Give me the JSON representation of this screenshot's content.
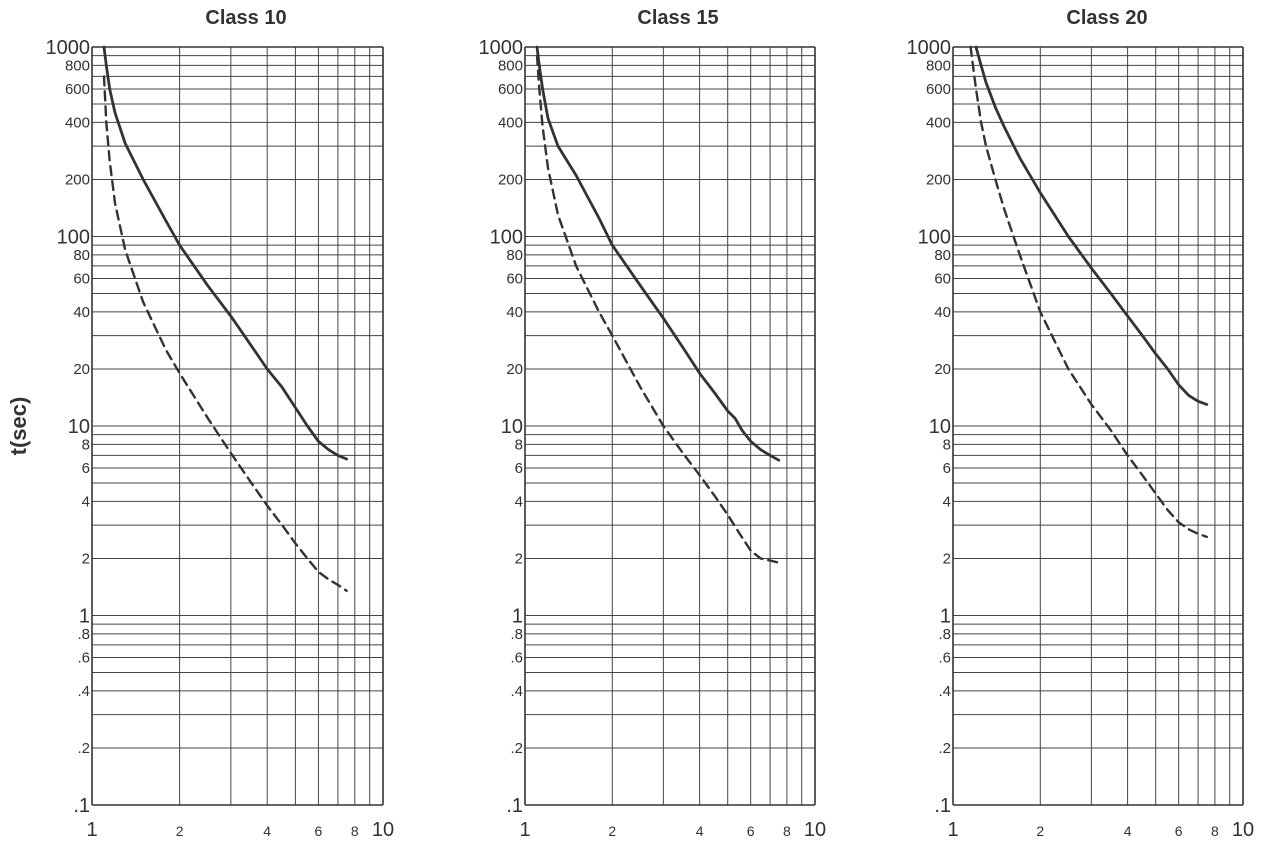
{
  "chart_data": [
    {
      "type": "line",
      "title": "Class 10",
      "ylabel": "t(sec)",
      "xlabel": "",
      "xscale": "log",
      "yscale": "log",
      "xlim": [
        1,
        10
      ],
      "ylim": [
        0.1,
        1000
      ],
      "grid": true,
      "x_tick_labels": [
        "1",
        "2",
        "4",
        "6",
        "8",
        "10"
      ],
      "y_tick_labels": [
        "1000",
        "800",
        "600",
        "400",
        "200",
        "100",
        "80",
        "60",
        "40",
        "20",
        "10",
        "8",
        "6",
        "4",
        "2",
        "1",
        ".8",
        ".6",
        ".4",
        ".2",
        ".1"
      ],
      "series": [
        {
          "style": "solid",
          "x": [
            1.1,
            1.12,
            1.15,
            1.2,
            1.3,
            1.5,
            1.8,
            2.0,
            2.5,
            3.0,
            3.5,
            4.0,
            4.5,
            5.0,
            5.5,
            6.0,
            6.5,
            7.0,
            7.5
          ],
          "y": [
            1000,
            800,
            600,
            450,
            310,
            200,
            120,
            90,
            55,
            38,
            27,
            20,
            16,
            12.5,
            10,
            8.3,
            7.5,
            7.0,
            6.7
          ]
        },
        {
          "style": "dashed",
          "x": [
            1.1,
            1.12,
            1.15,
            1.2,
            1.3,
            1.5,
            1.8,
            2.0,
            2.5,
            3.0,
            3.5,
            4.0,
            4.5,
            5.0,
            5.5,
            6.0,
            6.5,
            7.0,
            7.5
          ],
          "y": [
            700,
            400,
            250,
            150,
            85,
            45,
            25,
            19,
            11,
            7.2,
            5.1,
            3.8,
            3.0,
            2.4,
            2.0,
            1.7,
            1.55,
            1.45,
            1.35
          ]
        }
      ]
    },
    {
      "type": "line",
      "title": "Class 15",
      "ylabel": "",
      "xlabel": "",
      "xscale": "log",
      "yscale": "log",
      "xlim": [
        1,
        10
      ],
      "ylim": [
        0.1,
        1000
      ],
      "grid": true,
      "x_tick_labels": [
        "1",
        "2",
        "4",
        "6",
        "8",
        "10"
      ],
      "y_tick_labels": [
        "1000",
        "800",
        "600",
        "400",
        "200",
        "100",
        "80",
        "60",
        "40",
        "20",
        "10",
        "8",
        "6",
        "4",
        "2",
        "1",
        ".8",
        ".6",
        ".4",
        ".2",
        ".1"
      ],
      "series": [
        {
          "style": "solid",
          "x": [
            1.1,
            1.12,
            1.15,
            1.2,
            1.3,
            1.5,
            1.8,
            2.0,
            2.5,
            3.0,
            3.5,
            4.0,
            4.5,
            5.0,
            5.3,
            5.6,
            6.0,
            6.5,
            7.0,
            7.5
          ],
          "y": [
            1000,
            800,
            600,
            420,
            300,
            210,
            125,
            90,
            55,
            37,
            26,
            19,
            15,
            12,
            11,
            9.5,
            8.3,
            7.5,
            7.0,
            6.6
          ]
        },
        {
          "style": "dashed",
          "x": [
            1.1,
            1.12,
            1.15,
            1.2,
            1.3,
            1.5,
            1.8,
            2.0,
            2.5,
            3.0,
            3.5,
            4.0,
            4.5,
            5.0,
            5.5,
            6.0,
            6.5,
            7.0,
            7.5
          ],
          "y": [
            900,
            600,
            380,
            230,
            130,
            70,
            40,
            30,
            16,
            10,
            7.2,
            5.5,
            4.3,
            3.4,
            2.7,
            2.2,
            2.0,
            1.95,
            1.9
          ]
        }
      ]
    },
    {
      "type": "line",
      "title": "Class 20",
      "ylabel": "",
      "xlabel": "",
      "xscale": "log",
      "yscale": "log",
      "xlim": [
        1,
        10
      ],
      "ylim": [
        0.1,
        1000
      ],
      "grid": true,
      "x_tick_labels": [
        "1",
        "2",
        "4",
        "6",
        "8",
        "10"
      ],
      "y_tick_labels": [
        "1000",
        "800",
        "600",
        "400",
        "200",
        "100",
        "80",
        "60",
        "40",
        "20",
        "10",
        "8",
        "6",
        "4",
        "2",
        "1",
        ".8",
        ".6",
        ".4",
        ".2",
        ".1"
      ],
      "series": [
        {
          "style": "solid",
          "x": [
            1.2,
            1.25,
            1.3,
            1.4,
            1.5,
            1.7,
            2.0,
            2.5,
            3.0,
            3.5,
            4.0,
            4.5,
            5.0,
            5.5,
            6.0,
            6.5,
            7.0,
            7.5
          ],
          "y": [
            1000,
            800,
            650,
            480,
            380,
            260,
            170,
            100,
            68,
            50,
            38,
            30,
            24,
            20,
            16.5,
            14.5,
            13.5,
            13
          ]
        },
        {
          "style": "dashed",
          "x": [
            1.15,
            1.2,
            1.25,
            1.3,
            1.4,
            1.5,
            1.7,
            2.0,
            2.5,
            3.0,
            3.5,
            4.0,
            4.5,
            5.0,
            5.5,
            6.0,
            6.5,
            7.0,
            7.5
          ],
          "y": [
            1000,
            600,
            400,
            300,
            200,
            140,
            80,
            40,
            20,
            13,
            9.5,
            7,
            5.5,
            4.4,
            3.6,
            3.1,
            2.85,
            2.7,
            2.6
          ]
        }
      ]
    }
  ]
}
